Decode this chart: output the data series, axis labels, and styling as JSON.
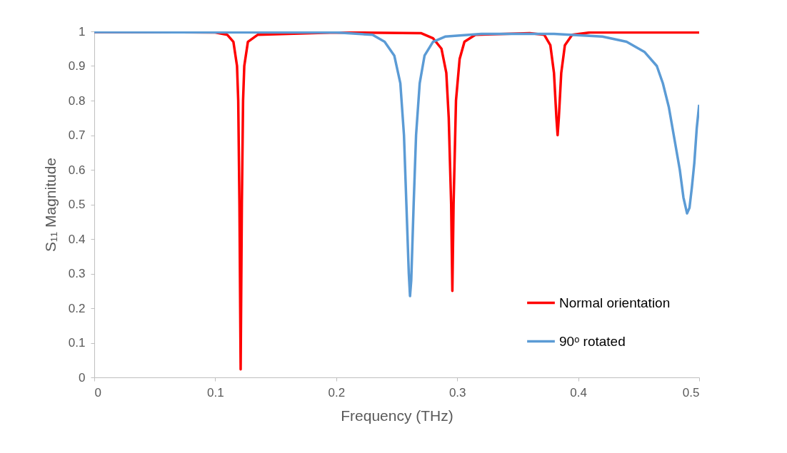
{
  "chart_data": {
    "type": "line",
    "xlabel": "Frequency (THz)",
    "ylabel": "S₁₁ Magnitude",
    "xlim": [
      0,
      0.5
    ],
    "ylim": [
      0,
      1
    ],
    "xticks": [
      0,
      0.1,
      0.2,
      0.3,
      0.4,
      0.5
    ],
    "yticks": [
      0,
      0.1,
      0.2,
      0.3,
      0.4,
      0.5,
      0.6,
      0.7,
      0.8,
      0.9,
      1
    ],
    "grid": false,
    "legend": "bottom right",
    "marker": "none",
    "line_style": "solid",
    "series": [
      {
        "name": "Normal orientation",
        "color": "#ff0000",
        "x": [
          0,
          0.1,
          0.11,
          0.115,
          0.118,
          0.119,
          0.12,
          0.121,
          0.122,
          0.123,
          0.124,
          0.127,
          0.135,
          0.2,
          0.27,
          0.28,
          0.287,
          0.291,
          0.293,
          0.295,
          0.296,
          0.297,
          0.299,
          0.302,
          0.306,
          0.315,
          0.36,
          0.372,
          0.377,
          0.38,
          0.382,
          0.383,
          0.384,
          0.386,
          0.389,
          0.395,
          0.41,
          0.5
        ],
        "values": [
          0.998,
          0.997,
          0.99,
          0.97,
          0.9,
          0.8,
          0.5,
          0.023,
          0.5,
          0.8,
          0.9,
          0.97,
          0.99,
          0.997,
          0.995,
          0.98,
          0.95,
          0.88,
          0.75,
          0.5,
          0.25,
          0.5,
          0.8,
          0.92,
          0.97,
          0.99,
          0.995,
          0.99,
          0.96,
          0.88,
          0.75,
          0.7,
          0.75,
          0.88,
          0.96,
          0.99,
          0.997,
          0.997
        ]
      },
      {
        "name": "90ᵒ rotated",
        "color": "#5b9bd5",
        "x": [
          0,
          0.2,
          0.23,
          0.24,
          0.248,
          0.253,
          0.256,
          0.258,
          0.26,
          0.261,
          0.262,
          0.264,
          0.266,
          0.269,
          0.273,
          0.28,
          0.29,
          0.32,
          0.38,
          0.42,
          0.44,
          0.455,
          0.465,
          0.47,
          0.475,
          0.48,
          0.484,
          0.487,
          0.49,
          0.492,
          0.494,
          0.496,
          0.498,
          0.5
        ],
        "values": [
          0.998,
          0.997,
          0.99,
          0.97,
          0.93,
          0.85,
          0.7,
          0.5,
          0.3,
          0.235,
          0.28,
          0.5,
          0.7,
          0.85,
          0.93,
          0.97,
          0.985,
          0.993,
          0.993,
          0.985,
          0.97,
          0.94,
          0.9,
          0.85,
          0.78,
          0.68,
          0.6,
          0.52,
          0.474,
          0.49,
          0.55,
          0.62,
          0.72,
          0.788
        ]
      }
    ]
  }
}
